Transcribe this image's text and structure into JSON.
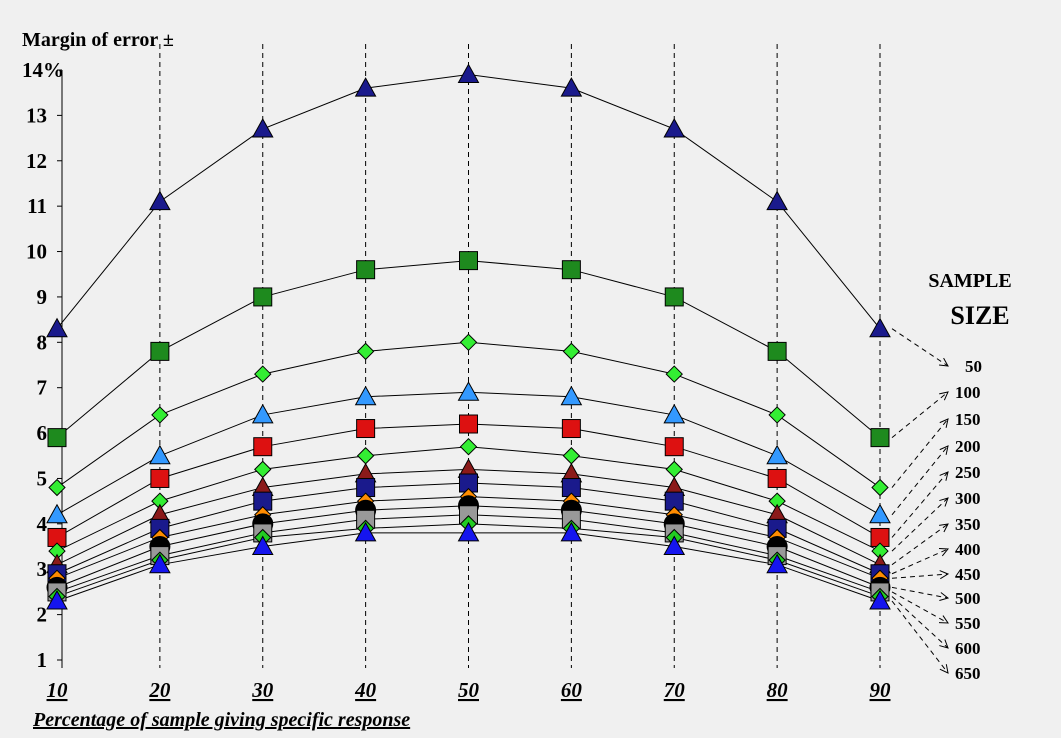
{
  "chart_data": {
    "type": "line",
    "ylabel": "Margin of error ±",
    "xlabel": "Percentage of sample giving specific response",
    "x": [
      10,
      20,
      30,
      40,
      50,
      60,
      70,
      80,
      90
    ],
    "x_tick_labels": [
      "10",
      "20",
      "30",
      "40",
      "50",
      "60",
      "70",
      "80",
      "90"
    ],
    "y_tick_labels": [
      "1",
      "2",
      "3",
      "4",
      "5",
      "6",
      "7",
      "8",
      "9",
      "10",
      "11",
      "12",
      "13",
      "14%"
    ],
    "y_ticks": [
      1,
      2,
      3,
      4,
      5,
      6,
      7,
      8,
      9,
      10,
      11,
      12,
      13,
      14
    ],
    "ylim": [
      0.8,
      14.2
    ],
    "xlim": [
      10,
      90
    ],
    "vertical_gridlines": "dashed",
    "legend": {
      "title_line1": "SAMPLE",
      "title_line2": "SIZE",
      "placement": "right"
    },
    "series": [
      {
        "name": "50",
        "marker": "triangle",
        "color": "#1a1a8c",
        "values": [
          8.3,
          11.1,
          12.7,
          13.6,
          13.9,
          13.6,
          12.7,
          11.1,
          8.3
        ]
      },
      {
        "name": "100",
        "marker": "square",
        "color": "#1e8a1e",
        "values": [
          5.9,
          7.8,
          9.0,
          9.6,
          9.8,
          9.6,
          9.0,
          7.8,
          5.9
        ]
      },
      {
        "name": "150",
        "marker": "diamond",
        "color": "#33ee33",
        "values": [
          4.8,
          6.4,
          7.3,
          7.8,
          8.0,
          7.8,
          7.3,
          6.4,
          4.8
        ]
      },
      {
        "name": "200",
        "marker": "triangle",
        "color": "#3399ff",
        "values": [
          4.2,
          5.5,
          6.4,
          6.8,
          6.9,
          6.8,
          6.4,
          5.5,
          4.2
        ]
      },
      {
        "name": "250",
        "marker": "square",
        "color": "#dd1111",
        "values": [
          3.7,
          5.0,
          5.7,
          6.1,
          6.2,
          6.1,
          5.7,
          5.0,
          3.7
        ]
      },
      {
        "name": "300",
        "marker": "diamond",
        "color": "#33ee33",
        "values": [
          3.4,
          4.5,
          5.2,
          5.5,
          5.7,
          5.5,
          5.2,
          4.5,
          3.4
        ]
      },
      {
        "name": "350",
        "marker": "triangle",
        "color": "#8b1a1a",
        "values": [
          3.1,
          4.2,
          4.8,
          5.1,
          5.2,
          5.1,
          4.8,
          4.2,
          3.1
        ]
      },
      {
        "name": "400",
        "marker": "square",
        "color": "#1a1a8c",
        "values": [
          2.9,
          3.9,
          4.5,
          4.8,
          4.9,
          4.8,
          4.5,
          3.9,
          2.9
        ]
      },
      {
        "name": "450",
        "marker": "diamond",
        "color": "#ff8c00",
        "values": [
          2.8,
          3.7,
          4.2,
          4.5,
          4.6,
          4.5,
          4.2,
          3.7,
          2.8
        ]
      },
      {
        "name": "500",
        "marker": "circle",
        "color": "#000000",
        "values": [
          2.6,
          3.5,
          4.0,
          4.3,
          4.4,
          4.3,
          4.0,
          3.5,
          2.6
        ]
      },
      {
        "name": "550",
        "marker": "square",
        "color": "#999999",
        "values": [
          2.5,
          3.3,
          3.8,
          4.1,
          4.2,
          4.1,
          3.8,
          3.3,
          2.5
        ]
      },
      {
        "name": "600",
        "marker": "diamond",
        "color": "#22cc22",
        "values": [
          2.4,
          3.2,
          3.7,
          3.9,
          4.0,
          3.9,
          3.7,
          3.2,
          2.4
        ]
      },
      {
        "name": "650",
        "marker": "triangle",
        "color": "#1515ee",
        "values": [
          2.3,
          3.1,
          3.5,
          3.8,
          3.8,
          3.8,
          3.5,
          3.1,
          2.3
        ]
      }
    ]
  }
}
